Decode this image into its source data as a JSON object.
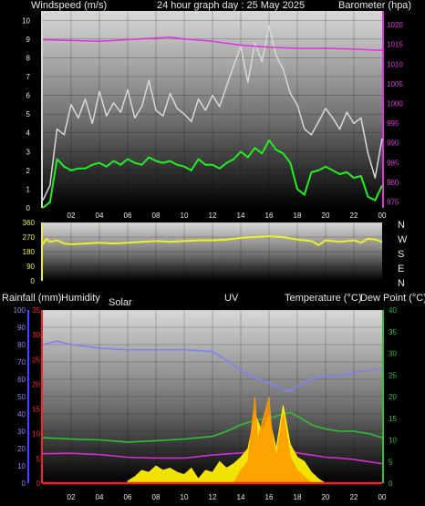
{
  "wind_panel": {
    "title": "24 hour graph day : 25 May 2025",
    "left_label": "Windspeed (m/s)",
    "right_label": "Barometer (hpa)"
  },
  "dir_panel": {
    "compass": [
      "N",
      "W",
      "S",
      "E",
      "N"
    ]
  },
  "bottom_panel": {
    "labels": [
      "Rainfall (mm)",
      "Humidity",
      "Solar",
      "UV",
      "Temperature (°C)",
      "Dew Point (°C)"
    ]
  },
  "colors": {
    "gust": "#d8d8d8",
    "wind": "#22ee22",
    "barometer": "#e030e0",
    "direction": "#f0f020",
    "humidity": "#8080f0",
    "temperature": "#30c030",
    "dewpoint": "#d030d0",
    "solar": "#ffee00",
    "uv": "#ff9900",
    "rain": "#ff2020"
  },
  "chart_data": [
    {
      "type": "line",
      "x_ticks": [
        "02",
        "04",
        "06",
        "08",
        "10",
        "12",
        "14",
        "16",
        "18",
        "20",
        "22",
        "00"
      ],
      "y_left": {
        "ticks": [
          0,
          1,
          2,
          3,
          4,
          5,
          6,
          7,
          8,
          9,
          10
        ],
        "lim": [
          0,
          10.5
        ]
      },
      "y_right": {
        "ticks": [
          975,
          980,
          985,
          990,
          995,
          1000,
          1005,
          1010,
          1015,
          1020
        ],
        "lim": [
          973.5,
          1023.5
        ]
      },
      "grid": true,
      "series": [
        {
          "key": "gust",
          "axis": "left",
          "x": [
            0,
            0.5,
            1,
            1.5,
            2,
            2.5,
            3,
            3.5,
            4,
            4.5,
            5,
            5.5,
            6,
            6.5,
            7,
            7.5,
            8,
            8.5,
            9,
            9.5,
            10,
            10.5,
            11,
            11.5,
            12,
            12.5,
            13,
            13.5,
            14,
            14.5,
            15,
            15.5,
            16,
            16.5,
            17,
            17.5,
            18,
            18.5,
            19,
            19.5,
            20,
            20.5,
            21,
            21.5,
            22,
            22.5,
            23,
            23.5,
            24
          ],
          "y": [
            0.4,
            1.2,
            4.2,
            3.9,
            5.5,
            4.8,
            5.8,
            4.5,
            6.2,
            4.9,
            5.6,
            5.1,
            6.3,
            4.8,
            5.4,
            6.8,
            5.2,
            4.9,
            6.1,
            5.3,
            5.0,
            4.6,
            5.8,
            5.2,
            6.0,
            5.4,
            6.5,
            7.6,
            8.6,
            6.7,
            8.8,
            7.8,
            9.7,
            8.1,
            7.4,
            6.1,
            5.5,
            4.2,
            3.9,
            4.6,
            5.3,
            4.8,
            4.2,
            5.1,
            4.5,
            4.8,
            2.9,
            1.6,
            3.7
          ]
        },
        {
          "key": "wind",
          "axis": "left",
          "x": [
            0,
            0.5,
            1,
            1.5,
            2,
            2.5,
            3,
            3.5,
            4,
            4.5,
            5,
            5.5,
            6,
            6.5,
            7,
            7.5,
            8,
            8.5,
            9,
            9.5,
            10,
            10.5,
            11,
            11.5,
            12,
            12.5,
            13,
            13.5,
            14,
            14.5,
            15,
            15.5,
            16,
            16.5,
            17,
            17.5,
            18,
            18.5,
            19,
            19.5,
            20,
            20.5,
            21,
            21.5,
            22,
            22.5,
            23,
            23.5,
            24
          ],
          "y": [
            0.0,
            0.3,
            2.6,
            2.2,
            2.0,
            2.1,
            2.1,
            2.3,
            2.4,
            2.2,
            2.5,
            2.3,
            2.6,
            2.4,
            2.3,
            2.7,
            2.5,
            2.4,
            2.5,
            2.3,
            2.2,
            2.0,
            2.6,
            2.3,
            2.3,
            2.1,
            2.4,
            2.6,
            3.0,
            2.7,
            3.2,
            2.9,
            3.6,
            3.1,
            2.9,
            2.4,
            1.0,
            0.7,
            1.9,
            2.0,
            2.2,
            2.0,
            1.8,
            1.9,
            1.6,
            1.7,
            0.6,
            0.4,
            1.2
          ]
        },
        {
          "key": "barometer",
          "axis": "right",
          "x": [
            0,
            2,
            4,
            6,
            8,
            9,
            10,
            12,
            14,
            16,
            18,
            20,
            22,
            24
          ],
          "y": [
            1016.2,
            1016.0,
            1015.8,
            1016.2,
            1016.6,
            1016.8,
            1016.4,
            1015.8,
            1014.8,
            1014.3,
            1014.0,
            1014.0,
            1013.8,
            1013.5
          ]
        }
      ]
    },
    {
      "type": "line",
      "y_ticks": [
        0,
        90,
        180,
        270,
        360
      ],
      "ylim": [
        0,
        360
      ],
      "grid": true,
      "series": [
        {
          "key": "direction",
          "x": [
            0,
            0.25,
            0.5,
            1,
            1.5,
            2,
            3,
            4,
            5,
            6,
            7,
            8,
            9,
            10,
            11,
            12,
            13,
            14,
            15,
            16,
            17,
            18,
            19,
            19.5,
            20,
            21,
            22,
            22.5,
            23,
            23.5,
            24
          ],
          "y": [
            225,
            260,
            240,
            250,
            230,
            225,
            230,
            235,
            230,
            235,
            240,
            245,
            240,
            245,
            250,
            250,
            255,
            265,
            270,
            275,
            270,
            255,
            245,
            220,
            250,
            240,
            250,
            235,
            260,
            255,
            240
          ]
        }
      ]
    },
    {
      "type": "line",
      "y_left_rain": {
        "ticks": [
          0,
          5,
          10,
          15,
          20,
          25,
          30,
          35
        ],
        "lim": [
          0,
          35
        ]
      },
      "y_left_humidity": {
        "ticks": [
          0,
          10,
          20,
          30,
          40,
          50,
          60,
          70,
          80,
          90,
          100
        ],
        "lim": [
          0,
          100
        ]
      },
      "y_right": {
        "ticks": [
          0,
          5,
          10,
          15,
          20,
          25,
          30,
          35,
          40
        ],
        "lim": [
          0,
          40
        ]
      },
      "grid": true,
      "series": [
        {
          "key": "humidity",
          "axis": "humidity",
          "x": [
            0,
            1,
            2,
            4,
            6,
            8,
            10,
            12,
            13,
            14,
            15,
            16,
            17,
            17.5,
            18,
            19,
            20,
            21,
            22,
            23,
            24
          ],
          "y": [
            80,
            82,
            80,
            78,
            77,
            77,
            77,
            76,
            71,
            65,
            61,
            58,
            54,
            53,
            56,
            60,
            62,
            62,
            64,
            65,
            66
          ]
        },
        {
          "key": "temperature",
          "axis": "right",
          "x": [
            0,
            2,
            4,
            6,
            8,
            10,
            12,
            13,
            14,
            15,
            16,
            17,
            17.5,
            18,
            19,
            20,
            21,
            22,
            23,
            24
          ],
          "y": [
            10.5,
            10.2,
            10.0,
            9.5,
            9.8,
            10.2,
            10.8,
            12.0,
            13.5,
            14.5,
            15.0,
            16.0,
            16.3,
            15.5,
            13.5,
            12.5,
            12.0,
            12.0,
            11.5,
            10.5
          ]
        },
        {
          "key": "dewpoint",
          "axis": "right",
          "x": [
            0,
            2,
            4,
            6,
            8,
            10,
            12,
            14,
            16,
            17,
            18,
            19,
            20,
            21,
            22,
            23,
            24
          ],
          "y": [
            6.8,
            6.9,
            6.6,
            6.0,
            5.8,
            5.8,
            6.5,
            7.0,
            7.5,
            7.8,
            7.0,
            6.5,
            6.0,
            5.8,
            5.5,
            5.0,
            4.5
          ]
        },
        {
          "key": "solar",
          "axis": "right",
          "x": [
            6.0,
            6.5,
            7.0,
            7.5,
            8.0,
            8.5,
            9.0,
            9.5,
            10.0,
            10.5,
            11.0,
            11.5,
            12.0,
            12.5,
            13.0,
            13.5,
            14.0,
            14.5,
            15.0,
            15.5,
            16.0,
            16.5,
            17.0,
            17.5,
            18.0,
            18.5,
            19.0,
            19.5,
            20.0
          ],
          "y": [
            0.5,
            1.5,
            3.0,
            2.5,
            4.0,
            3.0,
            3.5,
            2.5,
            2.0,
            3.5,
            1.0,
            3.0,
            2.5,
            5.0,
            3.5,
            4.5,
            6.0,
            8.0,
            16.0,
            12.0,
            15.5,
            8.0,
            18.0,
            9.0,
            6.0,
            5.0,
            2.5,
            1.0,
            0.0
          ]
        },
        {
          "key": "uv",
          "axis": "right",
          "x": [
            13.5,
            14.0,
            14.5,
            15.0,
            15.2,
            15.5,
            16.0,
            16.2,
            16.5,
            17.0,
            17.5,
            18.0,
            18.5,
            19.0
          ],
          "y": [
            0.0,
            3.0,
            5.0,
            20.0,
            10.0,
            14.0,
            20.0,
            12.0,
            6.0,
            16.0,
            6.0,
            3.0,
            1.5,
            0.0
          ]
        },
        {
          "key": "rain",
          "axis": "rain",
          "x": [
            0,
            24
          ],
          "y": [
            0,
            0
          ]
        }
      ]
    }
  ]
}
